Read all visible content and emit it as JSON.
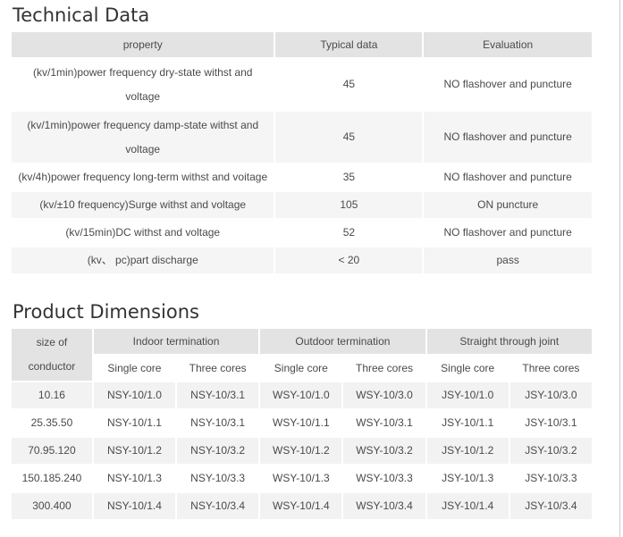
{
  "colors": {
    "header_bg": "#e3e3e3",
    "alt_row_bg_tech": "#f5f5f5",
    "alt_row_bg_dims": "#f2f2f2",
    "text": "#4a4a4a",
    "title_text": "#333333",
    "page_border": "#cccccc"
  },
  "technical_data": {
    "title": "Technical Data",
    "columns": [
      "property",
      "Typical data",
      "Evaluation"
    ],
    "rows": [
      {
        "property": "(kv/1min)power frequency dry-state withst and voltage",
        "typical": "45",
        "evaluation": "NO flashover and puncture"
      },
      {
        "property": "(kv/1min)power frequency damp-state withst and voltage",
        "typical": "45",
        "evaluation": "NO flashover and puncture"
      },
      {
        "property": "(kv/4h)power frequency long-term withst and voitage",
        "typical": "35",
        "evaluation": "NO flashover and puncture"
      },
      {
        "property": "(kv/±10 frequency)Surge withst and voltage",
        "typical": "105",
        "evaluation": "ON puncture"
      },
      {
        "property": "(kv/15min)DC withst and voltage",
        "typical": "52",
        "evaluation": "NO flashover and puncture"
      },
      {
        "property": "(kv、 pc)part discharge",
        "typical": "< 20",
        "evaluation": "pass"
      }
    ]
  },
  "product_dimensions": {
    "title": "Product Dimensions",
    "corner_header_lines": [
      "size of",
      "conductor"
    ],
    "groups": [
      "Indoor termination",
      "Outdoor termination",
      "Straight through joint"
    ],
    "sub_columns": [
      "Single core",
      "Three cores"
    ],
    "rows": [
      {
        "size": "10.16",
        "values": [
          "NSY-10/1.0",
          "NSY-10/3.1",
          "WSY-10/1.0",
          "WSY-10/3.0",
          "JSY-10/1.0",
          "JSY-10/3.0"
        ]
      },
      {
        "size": "25.35.50",
        "values": [
          "NSY-10/1.1",
          "NSY-10/3.1",
          "WSY-10/1.1",
          "WSY-10/3.1",
          "JSY-10/1.1",
          "JSY-10/3.1"
        ]
      },
      {
        "size": "70.95.120",
        "values": [
          "NSY-10/1.2",
          "NSY-10/3.2",
          "WSY-10/1.2",
          "WSY-10/3.2",
          "JSY-10/1.2",
          "JSY-10/3.2"
        ]
      },
      {
        "size": "150.185.240",
        "values": [
          "NSY-10/1.3",
          "NSY-10/3.3",
          "WSY-10/1.3",
          "WSY-10/3.3",
          "JSY-10/1.3",
          "JSY-10/3.3"
        ]
      },
      {
        "size": "300.400",
        "values": [
          "NSY-10/1.4",
          "NSY-10/3.4",
          "WSY-10/1.4",
          "WSY-10/3.4",
          "JSY-10/1.4",
          "JSY-10/3.4"
        ]
      }
    ]
  }
}
